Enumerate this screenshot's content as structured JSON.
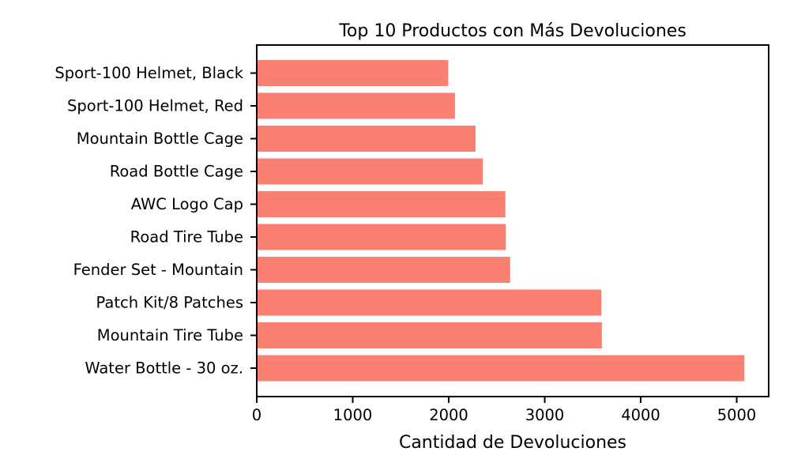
{
  "chart_data": {
    "type": "bar",
    "orientation": "horizontal",
    "title": "Top 10 Productos con Más Devoluciones",
    "xlabel": "Cantidad de Devoluciones",
    "ylabel": "",
    "categories": [
      "Water Bottle - 30 oz.",
      "Mountain Tire Tube",
      "Patch Kit/8 Patches",
      "Fender Set - Mountain",
      "Road Tire Tube",
      "AWC Logo Cap",
      "Road Bottle Cage",
      "Mountain Bottle Cage",
      "Sport-100 Helmet, Red",
      "Sport-100 Helmet, Black"
    ],
    "values": [
      5080,
      3595,
      3590,
      2640,
      2595,
      2590,
      2355,
      2280,
      2065,
      1995
    ],
    "xlim": [
      0,
      5333
    ],
    "xticks": [
      "0",
      "1000",
      "2000",
      "3000",
      "4000",
      "5000"
    ],
    "bar_color": "#fa8072",
    "grid": false,
    "legend": "none"
  }
}
